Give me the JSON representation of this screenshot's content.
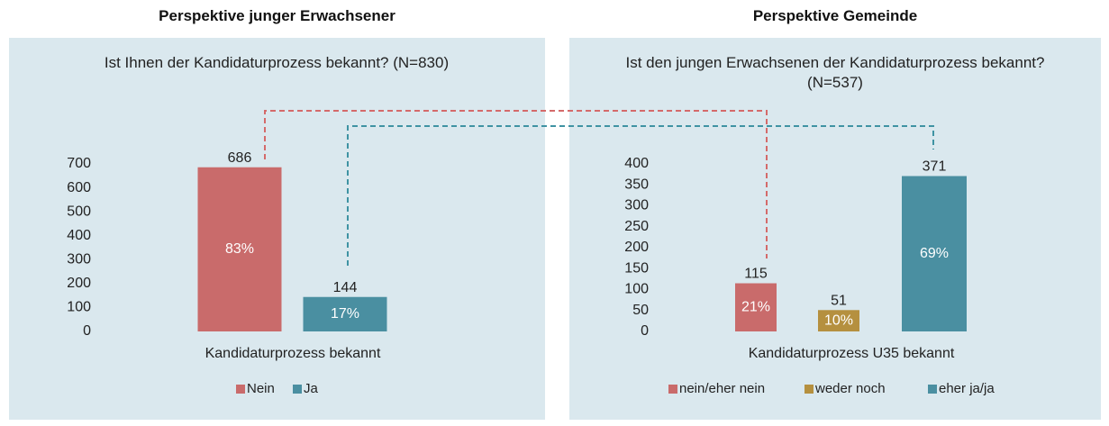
{
  "chart_data": [
    {
      "type": "bar",
      "heading": "Perspektive junger Erwachsener",
      "title": "Ist Ihnen der Kandidaturprozess bekannt? (N=830)",
      "categories": [
        "Kandidaturprozess bekannt"
      ],
      "series": [
        {
          "name": "Nein",
          "color": "#c96b6b",
          "values": [
            686
          ],
          "shares": [
            83
          ],
          "share_labels": [
            "83%"
          ]
        },
        {
          "name": "Ja",
          "color": "#4a8fa1",
          "values": [
            144
          ],
          "shares": [
            17
          ],
          "share_labels": [
            "17%"
          ]
        }
      ],
      "ylim": [
        0,
        700
      ],
      "yticks": [
        0,
        100,
        200,
        300,
        400,
        500,
        600,
        700
      ],
      "grid": false,
      "legend": "bottom"
    },
    {
      "type": "bar",
      "heading": "Perspektive Gemeinde",
      "title": "Ist den jungen Erwachsenen der Kandidaturprozess bekannt? (N=537)",
      "categories": [
        "Kandidaturprozess U35 bekannt"
      ],
      "series": [
        {
          "name": "nein/eher nein",
          "color": "#c96b6b",
          "values": [
            115
          ],
          "shares": [
            21
          ],
          "share_labels": [
            "21%"
          ]
        },
        {
          "name": "weder noch",
          "color": "#b5903f",
          "values": [
            51
          ],
          "shares": [
            10
          ],
          "share_labels": [
            "10%"
          ]
        },
        {
          "name": "eher ja/ja",
          "color": "#4a8fa1",
          "values": [
            371
          ],
          "shares": [
            69
          ],
          "share_labels": [
            "69%"
          ]
        }
      ],
      "ylim": [
        0,
        400
      ],
      "yticks": [
        0,
        50,
        100,
        150,
        200,
        250,
        300,
        350,
        400
      ],
      "grid": false,
      "legend": "bottom"
    }
  ]
}
